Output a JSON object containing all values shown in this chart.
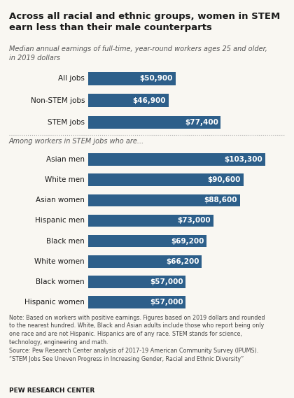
{
  "title": "Across all racial and ethnic groups, women in STEM\nearn less than their male counterparts",
  "subtitle": "Median annual earnings of full-time, year-round workers ages 25 and older,\nin 2019 dollars",
  "section1_label": "",
  "section2_label": "Among workers in STEM jobs who are...",
  "group1_categories": [
    "All jobs",
    "Non-STEM jobs",
    "STEM jobs"
  ],
  "group1_values": [
    50900,
    46900,
    77400
  ],
  "group1_labels": [
    "$50,900",
    "$46,900",
    "$77,400"
  ],
  "group2_categories": [
    "Asian men",
    "White men",
    "Asian women",
    "Hispanic men",
    "Black men",
    "White women",
    "Black women",
    "Hispanic women"
  ],
  "group2_values": [
    103300,
    90600,
    88600,
    73000,
    69200,
    66200,
    57000,
    57000
  ],
  "group2_labels": [
    "$103,300",
    "$90,600",
    "$88,600",
    "$73,000",
    "$69,200",
    "$66,200",
    "$57,000",
    "$57,000"
  ],
  "bar_color": "#2e5f8a",
  "bar_color_dark": "#1f4e79",
  "note_text": "Note: Based on workers with positive earnings. Figures based on 2019 dollars and rounded\nto the nearest hundred. White, Black and Asian adults include those who report being only\none race and are not Hispanic. Hispanics are of any race. STEM stands for science,\ntechnology, engineering and math.\nSource: Pew Research Center analysis of 2017-19 American Community Survey (IPUMS).\n“STEM Jobs See Uneven Progress in Increasing Gender, Racial and Ethnic Diversity”",
  "source_label": "PEW RESEARCH CENTER",
  "bg_color": "#f9f7f2",
  "max_value": 115000
}
